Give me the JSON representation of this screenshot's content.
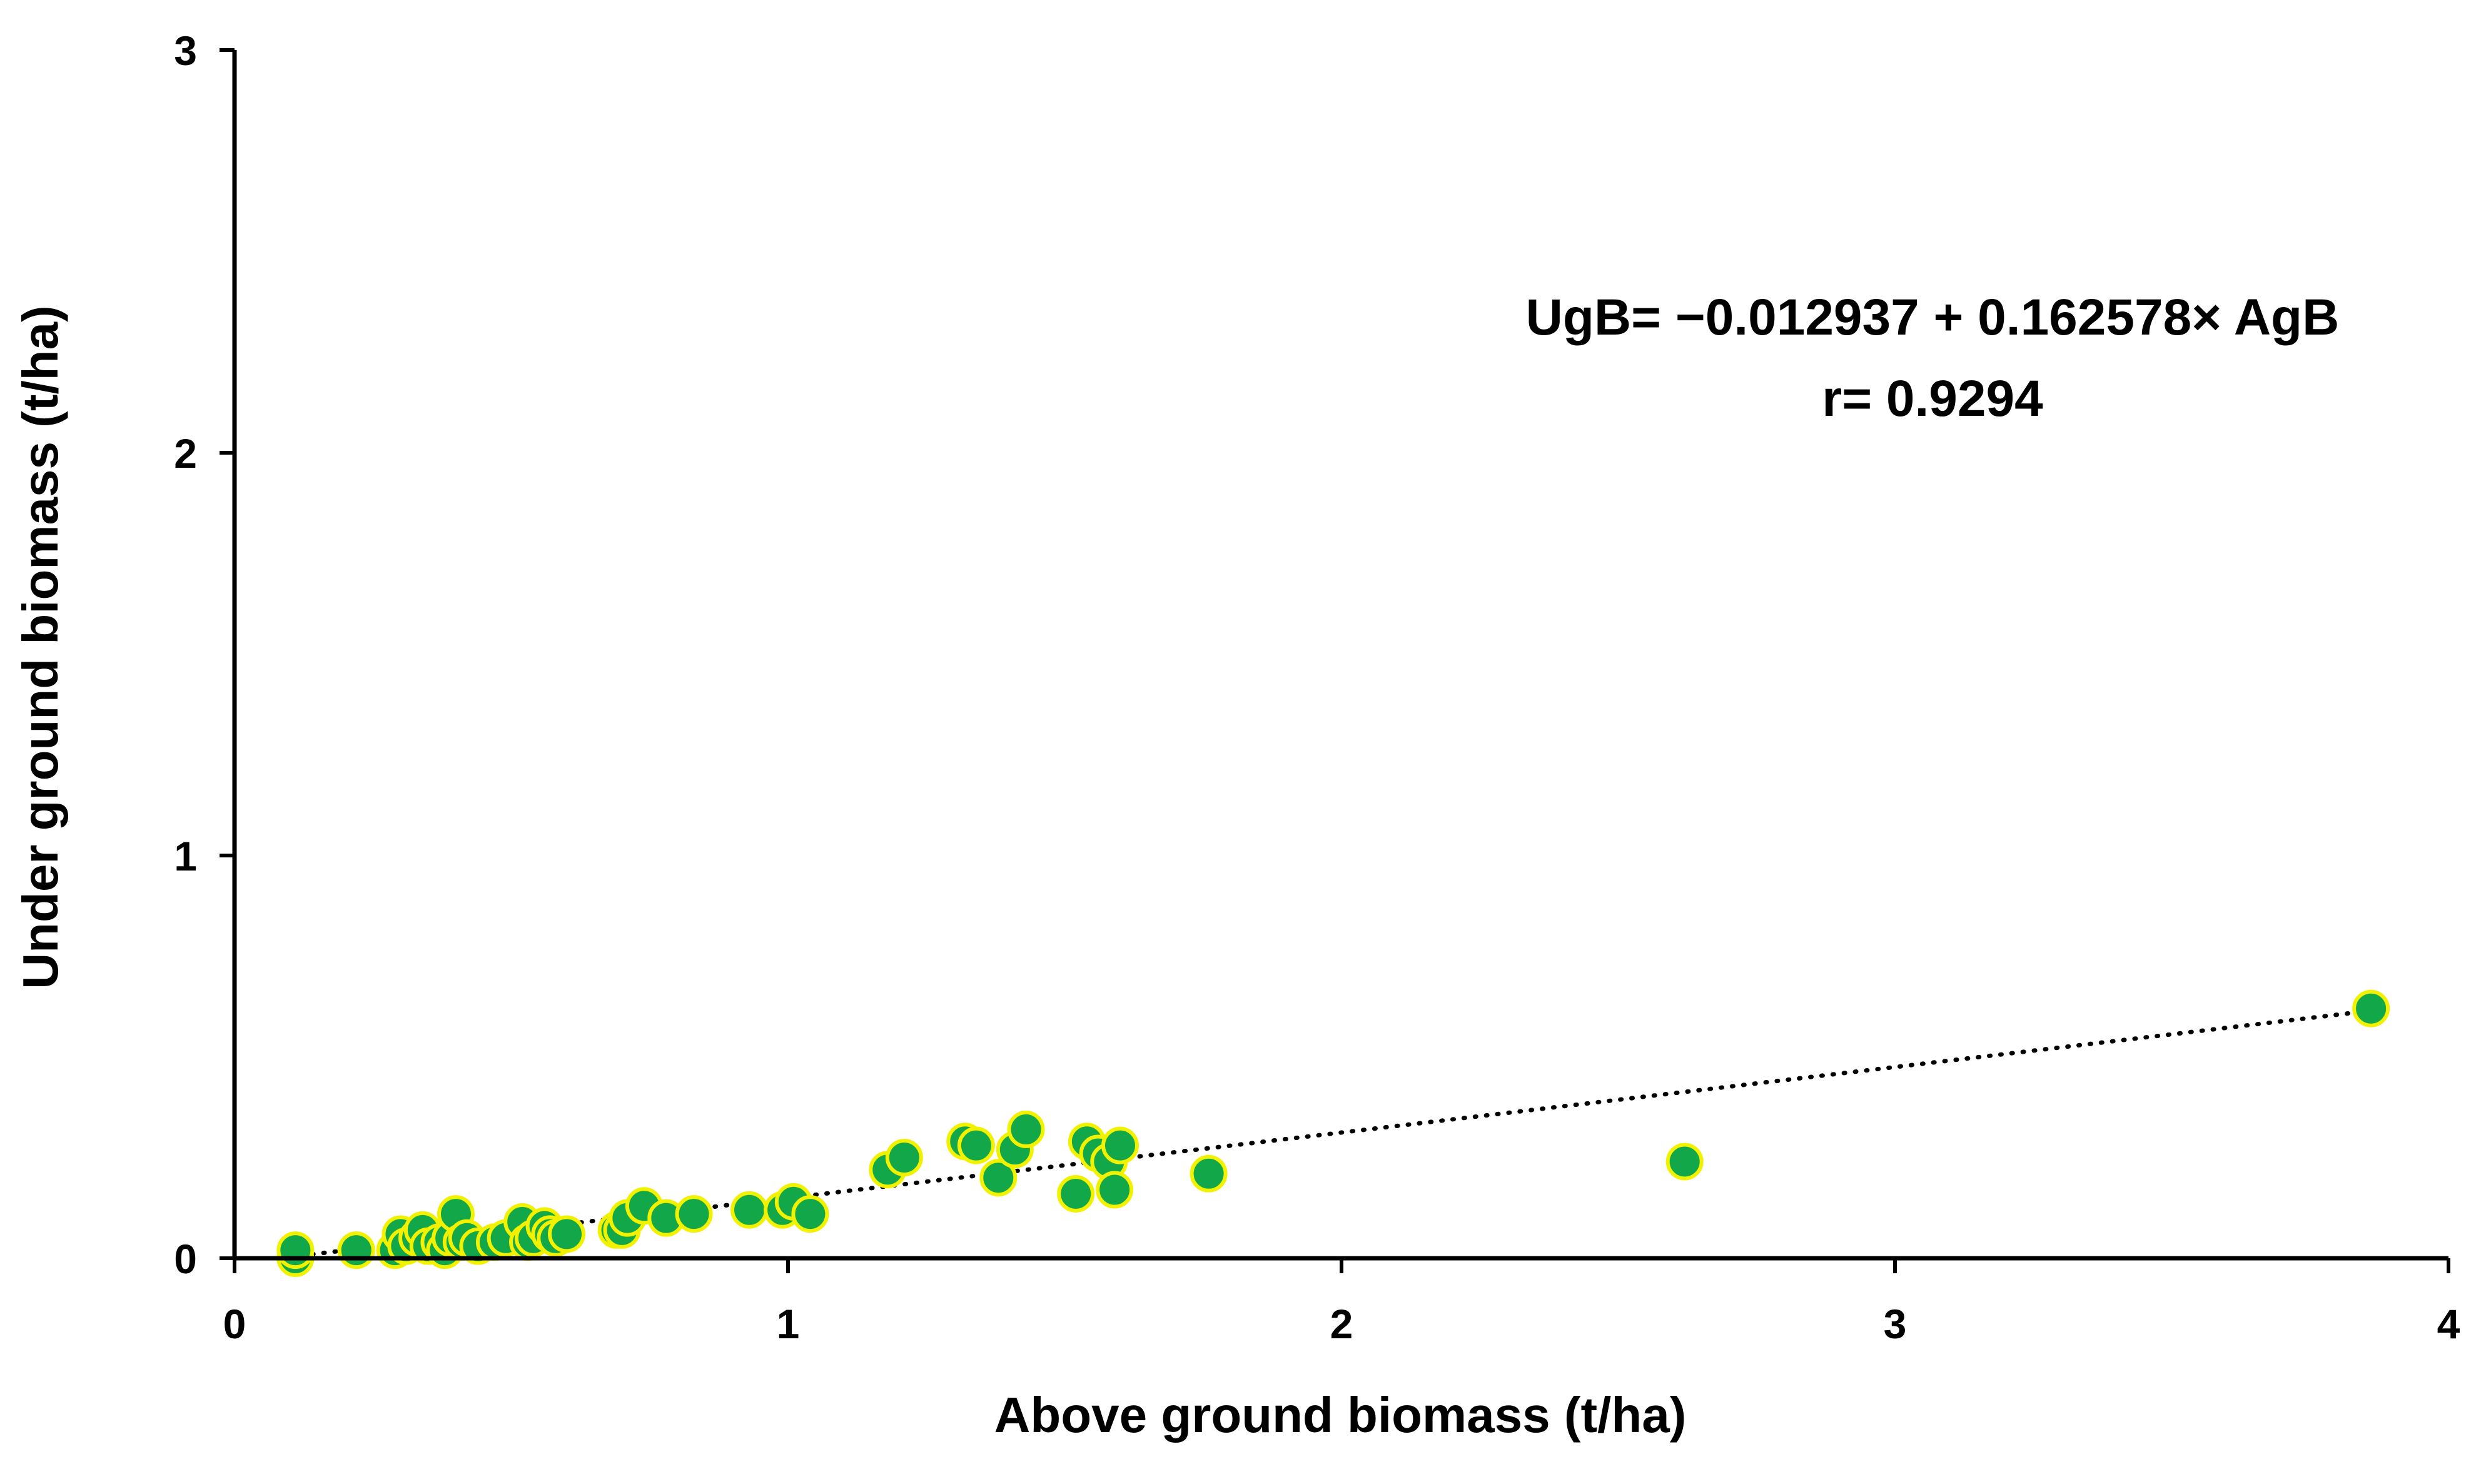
{
  "chart_data": {
    "type": "scatter",
    "title": "",
    "xlabel": "Above ground biomass (t/ha)",
    "ylabel": "Under ground biomass (t/ha)",
    "xlim": [
      0,
      4
    ],
    "ylim": [
      0,
      3
    ],
    "x_ticks": [
      "0",
      "1",
      "2",
      "3",
      "4"
    ],
    "y_ticks": [
      "0",
      "1",
      "2",
      "3"
    ],
    "grid": false,
    "legend": "none",
    "annotations": {
      "equation": "UgB= −0.012937 + 0.162578× AgB",
      "r_value": "r= 0.9294"
    },
    "trendline": {
      "style": "dotted",
      "intercept": -0.012937,
      "slope": 0.162578,
      "x_range": [
        0.1,
        3.85
      ]
    },
    "colors": {
      "marker_fill": "#12a84a",
      "marker_edge": "#f2f200",
      "trendline": "#000000",
      "axis": "#000000"
    },
    "series": [
      {
        "x": [
          0.11,
          0.11,
          0.22,
          0.29,
          0.3,
          0.31,
          0.33,
          0.34,
          0.35,
          0.37,
          0.38,
          0.39,
          0.4,
          0.41,
          0.42,
          0.44,
          0.47,
          0.49,
          0.52,
          0.53,
          0.54,
          0.56,
          0.57,
          0.58,
          0.6,
          0.69,
          0.7,
          0.71,
          0.74,
          0.78,
          0.83,
          0.93,
          0.99,
          1.01,
          1.04,
          1.18,
          1.21,
          1.32,
          1.34,
          1.38,
          1.41,
          1.43,
          1.52,
          1.54,
          1.56,
          1.58,
          1.59,
          1.6,
          1.76,
          2.62,
          3.86
        ],
        "y": [
          0.0,
          0.02,
          0.02,
          0.02,
          0.06,
          0.03,
          0.05,
          0.07,
          0.03,
          0.04,
          0.02,
          0.05,
          0.11,
          0.04,
          0.05,
          0.03,
          0.04,
          0.05,
          0.09,
          0.04,
          0.05,
          0.08,
          0.06,
          0.05,
          0.06,
          0.07,
          0.07,
          0.1,
          0.13,
          0.1,
          0.11,
          0.12,
          0.12,
          0.14,
          0.11,
          0.22,
          0.25,
          0.29,
          0.28,
          0.2,
          0.27,
          0.32,
          0.16,
          0.29,
          0.26,
          0.24,
          0.17,
          0.28,
          0.21,
          0.24,
          0.62
        ]
      }
    ]
  }
}
